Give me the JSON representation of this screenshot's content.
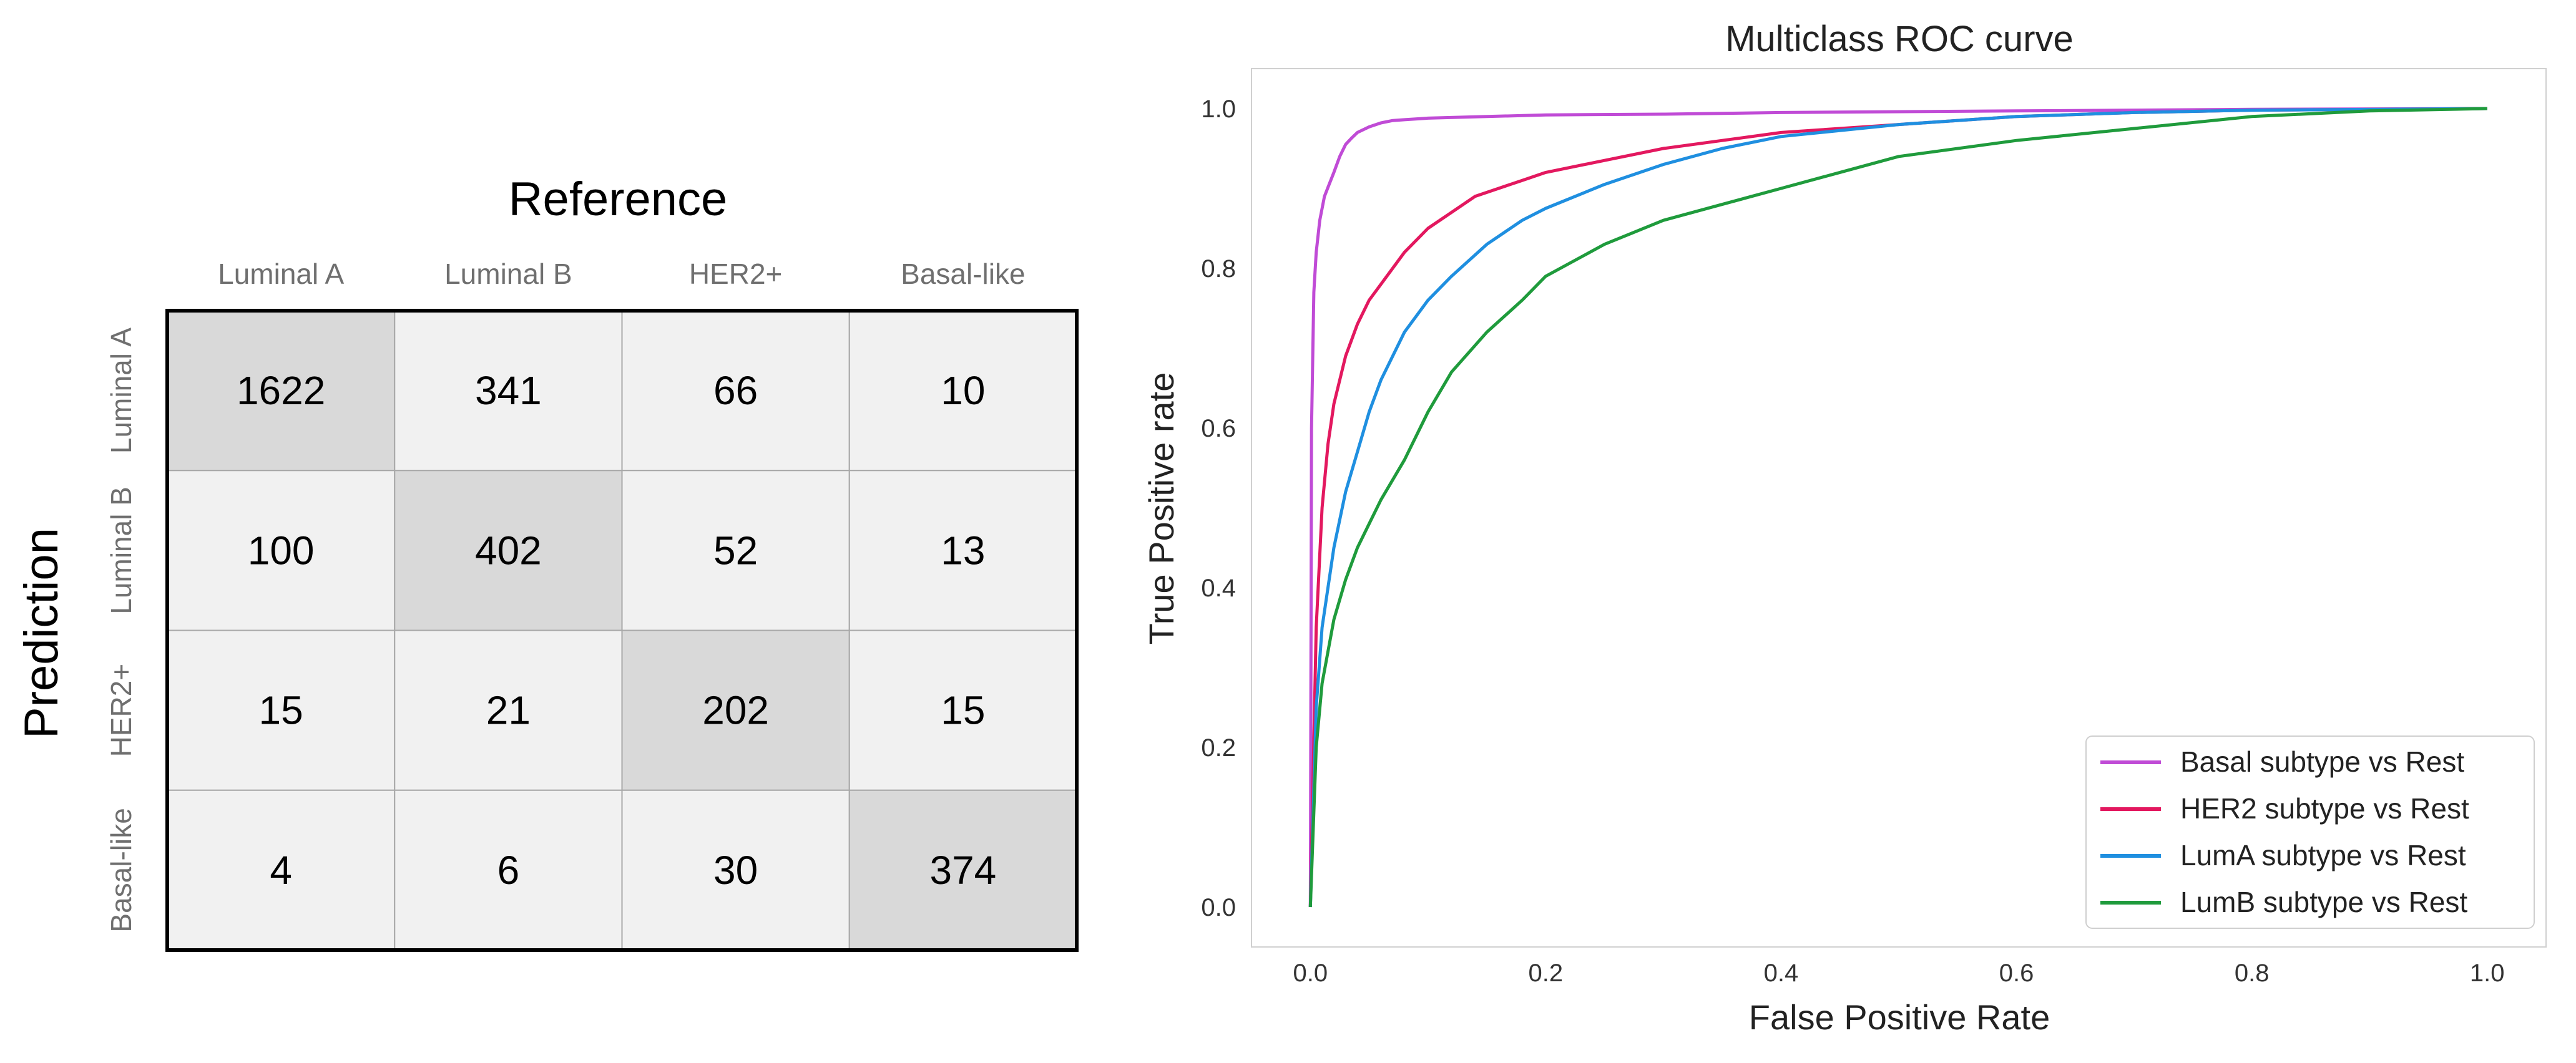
{
  "chart_data": [
    {
      "type": "heatmap",
      "title": "Reference",
      "ylabel": "Prediction",
      "columns": [
        "Luminal A",
        "Luminal B",
        "HER2+",
        "Basal-like"
      ],
      "rows": [
        "Luminal A",
        "Luminal B",
        "HER2+",
        "Basal-like"
      ],
      "values": [
        [
          1622,
          341,
          66,
          10
        ],
        [
          100,
          402,
          52,
          13
        ],
        [
          15,
          21,
          202,
          15
        ],
        [
          4,
          6,
          30,
          374
        ]
      ],
      "colors": {
        "diagonal": "#d9d9d9",
        "offdiagonal": "#f1f1f1",
        "text": "#000000",
        "labels": "#6f6f6f"
      }
    },
    {
      "type": "line",
      "title": "Multiclass ROC curve",
      "xlabel": "False Positive Rate",
      "ylabel": "True Positive rate",
      "xlim": [
        -0.05,
        1.05
      ],
      "ylim": [
        -0.05,
        1.05
      ],
      "xticks": [
        0.0,
        0.2,
        0.4,
        0.6,
        0.8,
        1.0
      ],
      "yticks": [
        0.0,
        0.2,
        0.4,
        0.6,
        0.8,
        1.0
      ],
      "grid": false,
      "legend_position": "bottom-right",
      "series": [
        {
          "name": "Basal subtype vs Rest",
          "color": "#c04bd6",
          "x": [
            0.0,
            0.001,
            0.003,
            0.005,
            0.008,
            0.012,
            0.016,
            0.02,
            0.025,
            0.03,
            0.035,
            0.04,
            0.05,
            0.06,
            0.07,
            0.08,
            0.1,
            0.15,
            0.2,
            0.3,
            0.4,
            0.6,
            0.8,
            1.0
          ],
          "y": [
            0.0,
            0.6,
            0.77,
            0.82,
            0.86,
            0.89,
            0.905,
            0.92,
            0.94,
            0.955,
            0.963,
            0.97,
            0.977,
            0.982,
            0.985,
            0.986,
            0.988,
            0.99,
            0.992,
            0.993,
            0.995,
            0.997,
            0.999,
            1.0
          ]
        },
        {
          "name": "HER2 subtype vs Rest",
          "color": "#e3185f",
          "x": [
            0.0,
            0.005,
            0.01,
            0.015,
            0.02,
            0.03,
            0.04,
            0.05,
            0.06,
            0.08,
            0.1,
            0.12,
            0.14,
            0.16,
            0.18,
            0.2,
            0.25,
            0.3,
            0.35,
            0.4,
            0.5,
            0.6,
            0.7,
            0.8,
            1.0
          ],
          "y": [
            0.0,
            0.35,
            0.5,
            0.58,
            0.63,
            0.69,
            0.73,
            0.76,
            0.78,
            0.82,
            0.85,
            0.87,
            0.89,
            0.9,
            0.91,
            0.92,
            0.935,
            0.95,
            0.96,
            0.97,
            0.98,
            0.99,
            0.995,
            0.998,
            1.0
          ]
        },
        {
          "name": "LumA subtype vs Rest",
          "color": "#1f8fe0",
          "x": [
            0.0,
            0.005,
            0.01,
            0.02,
            0.03,
            0.04,
            0.05,
            0.06,
            0.08,
            0.1,
            0.12,
            0.15,
            0.18,
            0.2,
            0.25,
            0.3,
            0.35,
            0.4,
            0.5,
            0.6,
            0.7,
            0.8,
            1.0
          ],
          "y": [
            0.0,
            0.25,
            0.35,
            0.45,
            0.52,
            0.57,
            0.62,
            0.66,
            0.72,
            0.76,
            0.79,
            0.83,
            0.86,
            0.875,
            0.905,
            0.93,
            0.95,
            0.965,
            0.98,
            0.99,
            0.995,
            0.998,
            1.0
          ]
        },
        {
          "name": "LumB subtype vs Rest",
          "color": "#1f9b3c",
          "x": [
            0.0,
            0.005,
            0.01,
            0.02,
            0.03,
            0.04,
            0.05,
            0.06,
            0.08,
            0.1,
            0.12,
            0.15,
            0.18,
            0.2,
            0.25,
            0.3,
            0.35,
            0.4,
            0.45,
            0.5,
            0.6,
            0.7,
            0.8,
            0.9,
            1.0
          ],
          "y": [
            0.0,
            0.2,
            0.28,
            0.36,
            0.41,
            0.45,
            0.48,
            0.51,
            0.56,
            0.62,
            0.67,
            0.72,
            0.76,
            0.79,
            0.83,
            0.86,
            0.88,
            0.9,
            0.92,
            0.94,
            0.96,
            0.975,
            0.99,
            0.997,
            1.0
          ]
        }
      ]
    }
  ]
}
